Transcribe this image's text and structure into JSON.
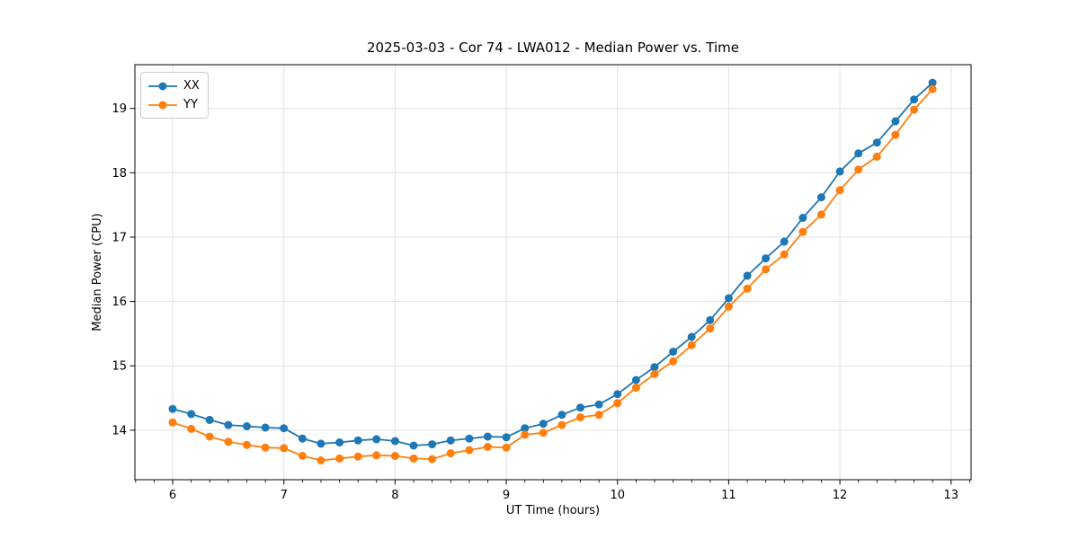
{
  "figure": {
    "background": "#ffffff"
  },
  "chart_data": {
    "type": "line",
    "title": "2025-03-03 - Cor 74 - LWA012 - Median Power vs. Time",
    "xlabel": "UT Time (hours)",
    "ylabel": "Median Power (CPU)",
    "xlim": [
      5.66,
      13.18
    ],
    "ylim": [
      13.23,
      19.68
    ],
    "xticks": [
      6,
      7,
      8,
      9,
      10,
      11,
      12,
      13
    ],
    "yticks": [
      14,
      15,
      16,
      17,
      18,
      19
    ],
    "x_minor_tick_step": 0.16667,
    "grid": true,
    "grid_color": "#e0e0e0",
    "axis_color": "#000000",
    "legend_position": "upper-left",
    "x": [
      6.0,
      6.167,
      6.333,
      6.5,
      6.667,
      6.833,
      7.0,
      7.167,
      7.333,
      7.5,
      7.667,
      7.833,
      8.0,
      8.167,
      8.333,
      8.5,
      8.667,
      8.833,
      9.0,
      9.167,
      9.333,
      9.5,
      9.667,
      9.833,
      10.0,
      10.167,
      10.333,
      10.5,
      10.667,
      10.833,
      11.0,
      11.167,
      11.333,
      11.5,
      11.667,
      11.833,
      12.0,
      12.167,
      12.333,
      12.5,
      12.667,
      12.833
    ],
    "series": [
      {
        "name": "XX",
        "color": "#1f77b4",
        "values": [
          14.33,
          14.25,
          14.16,
          14.08,
          14.06,
          14.04,
          14.03,
          13.87,
          13.79,
          13.81,
          13.84,
          13.86,
          13.83,
          13.76,
          13.78,
          13.84,
          13.87,
          13.9,
          13.89,
          14.03,
          14.1,
          14.24,
          14.35,
          14.4,
          14.56,
          14.78,
          14.98,
          15.22,
          15.45,
          15.71,
          16.05,
          16.4,
          16.67,
          16.93,
          17.3,
          17.62,
          18.02,
          18.3,
          18.47,
          18.8,
          19.14,
          19.4
        ]
      },
      {
        "name": "YY",
        "color": "#ff7f0e",
        "values": [
          14.12,
          14.02,
          13.9,
          13.82,
          13.77,
          13.73,
          13.72,
          13.6,
          13.53,
          13.56,
          13.59,
          13.61,
          13.6,
          13.56,
          13.55,
          13.64,
          13.69,
          13.74,
          13.73,
          13.93,
          13.96,
          14.08,
          14.2,
          14.24,
          14.42,
          14.66,
          14.87,
          15.07,
          15.32,
          15.58,
          15.92,
          16.2,
          16.5,
          16.73,
          17.08,
          17.35,
          17.73,
          18.05,
          18.25,
          18.59,
          18.98,
          19.3
        ]
      }
    ]
  }
}
